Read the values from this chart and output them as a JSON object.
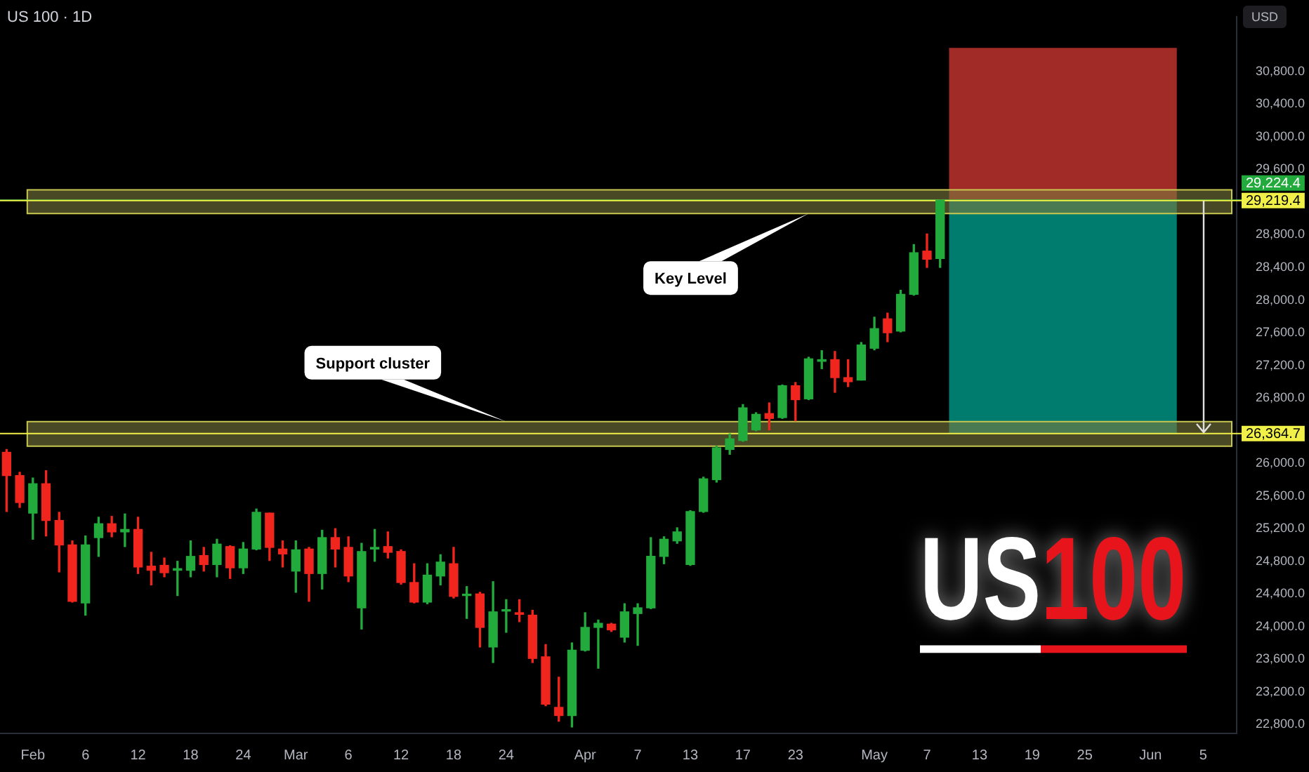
{
  "chart_data": {
    "type": "candlestick",
    "title": "US 100 · 1D",
    "ylabel": "USD",
    "subtitle": "US100",
    "categories": [
      null,
      null,
      "Feb",
      null,
      null,
      null,
      "6",
      null,
      null,
      null,
      "12",
      null,
      null,
      null,
      "18",
      null,
      null,
      null,
      "24",
      null,
      null,
      null,
      "Mar",
      null,
      null,
      null,
      "6",
      null,
      null,
      null,
      "12",
      null,
      null,
      null,
      "18",
      null,
      null,
      null,
      "24",
      null,
      null,
      null,
      null,
      null,
      "Apr",
      null,
      null,
      null,
      "7",
      null,
      null,
      null,
      "13",
      null,
      null,
      null,
      "17",
      null,
      null,
      null,
      "23",
      null,
      null,
      null,
      null,
      null,
      "May",
      null,
      null,
      null,
      "7",
      null,
      null,
      null,
      "13",
      null,
      null,
      null,
      "19",
      null,
      null,
      null,
      "25",
      null,
      null,
      null,
      null,
      "Jun",
      null,
      null,
      null,
      "5",
      null,
      null
    ],
    "ohlc": [
      [
        26135,
        26170,
        25410,
        25850
      ],
      [
        25850,
        25890,
        25460,
        25520
      ],
      [
        25390,
        25820,
        25070,
        25750
      ],
      [
        25750,
        25910,
        25110,
        25300
      ],
      [
        25300,
        25400,
        24670,
        25000
      ],
      [
        25000,
        25050,
        24300,
        24310
      ],
      [
        24290,
        25110,
        24140,
        25000
      ],
      [
        25090,
        25340,
        24860,
        25260
      ],
      [
        25260,
        25350,
        25100,
        25160
      ],
      [
        25160,
        25380,
        24980,
        25190
      ],
      [
        25190,
        25340,
        24650,
        24730
      ],
      [
        24740,
        24910,
        24510,
        24690
      ],
      [
        24750,
        24840,
        24610,
        24660
      ],
      [
        24690,
        24800,
        24380,
        24710
      ],
      [
        24690,
        25050,
        24610,
        24860
      ],
      [
        24870,
        24970,
        24680,
        24760
      ],
      [
        24760,
        25070,
        24610,
        25010
      ],
      [
        24980,
        24990,
        24590,
        24720
      ],
      [
        24720,
        25030,
        24650,
        24950
      ],
      [
        24950,
        25440,
        24940,
        25400
      ],
      [
        25390,
        25390,
        24810,
        24970
      ],
      [
        24950,
        25050,
        24730,
        24890
      ],
      [
        24680,
        25050,
        24420,
        24940
      ],
      [
        24950,
        24970,
        24310,
        24650
      ],
      [
        24650,
        25180,
        24460,
        25090
      ],
      [
        25090,
        25200,
        24730,
        24950
      ],
      [
        24970,
        25100,
        24550,
        24620
      ],
      [
        24230,
        25020,
        23970,
        24920
      ],
      [
        24950,
        25190,
        24800,
        24970
      ],
      [
        24980,
        25160,
        24840,
        24910
      ],
      [
        24920,
        24940,
        24520,
        24540
      ],
      [
        24540,
        24770,
        24290,
        24300
      ],
      [
        24300,
        24770,
        24280,
        24630
      ],
      [
        24620,
        24880,
        24510,
        24790
      ],
      [
        24770,
        24970,
        24350,
        24370
      ],
      [
        24380,
        24490,
        24100,
        24390
      ],
      [
        24400,
        24420,
        23750,
        23990
      ],
      [
        23750,
        24550,
        23560,
        24180
      ],
      [
        24190,
        24330,
        23930,
        24200
      ],
      [
        24170,
        24330,
        24060,
        24150
      ],
      [
        24140,
        24200,
        23560,
        23610
      ],
      [
        23630,
        23780,
        23030,
        23050
      ],
      [
        23010,
        23380,
        22840,
        22910
      ],
      [
        22910,
        23800,
        22770,
        23710
      ],
      [
        23710,
        24170,
        23700,
        23990
      ],
      [
        23990,
        24080,
        23490,
        24040
      ],
      [
        24030,
        24040,
        23940,
        23960
      ],
      [
        23870,
        24280,
        23810,
        24180
      ],
      [
        24160,
        24280,
        23770,
        24230
      ],
      [
        24230,
        25090,
        24220,
        24860
      ],
      [
        24860,
        25100,
        24770,
        25070
      ],
      [
        25050,
        25210,
        25020,
        25160
      ],
      [
        24760,
        25420,
        24750,
        25410
      ],
      [
        25410,
        25830,
        25400,
        25810
      ],
      [
        25800,
        26210,
        25770,
        26190
      ],
      [
        26170,
        26360,
        26110,
        26300
      ],
      [
        26280,
        26720,
        26270,
        26680
      ],
      [
        26410,
        26620,
        26400,
        26600
      ],
      [
        26610,
        26740,
        26410,
        26550
      ],
      [
        26560,
        26960,
        26550,
        26950
      ],
      [
        26950,
        26990,
        26520,
        26780
      ],
      [
        26790,
        27300,
        26780,
        27280
      ],
      [
        27250,
        27380,
        27160,
        27270
      ],
      [
        27270,
        27370,
        26870,
        27050
      ],
      [
        27050,
        27270,
        26940,
        27000
      ],
      [
        27020,
        27480,
        27020,
        27450
      ],
      [
        27410,
        27790,
        27390,
        27650
      ],
      [
        27770,
        27840,
        27490,
        27600
      ],
      [
        27620,
        28120,
        27610,
        28070
      ],
      [
        28070,
        28680,
        28060,
        28580
      ],
      [
        28600,
        28810,
        28400,
        28500
      ],
      [
        28510,
        29224.4,
        28400,
        29219.4
      ],
      null,
      null,
      null,
      null,
      null,
      null,
      null,
      null,
      null,
      null,
      null,
      null,
      null,
      null,
      null,
      null,
      null,
      null,
      null,
      null,
      null,
      null
    ],
    "ylim": [
      22700,
      31480
    ],
    "yticks": [
      {
        "value": 22800,
        "label": "22,800.0"
      },
      {
        "value": 23200,
        "label": "23,200.0"
      },
      {
        "value": 23600,
        "label": "23,600.0"
      },
      {
        "value": 24000,
        "label": "24,000.0"
      },
      {
        "value": 24400,
        "label": "24,400.0"
      },
      {
        "value": 24800,
        "label": "24,800.0"
      },
      {
        "value": 25200,
        "label": "25,200.0"
      },
      {
        "value": 25600,
        "label": "25,600.0"
      },
      {
        "value": 26000,
        "label": "26,000.0"
      },
      {
        "value": 26800,
        "label": "26,800.0"
      },
      {
        "value": 27200,
        "label": "27,200.0"
      },
      {
        "value": 27600,
        "label": "27,600.0"
      },
      {
        "value": 28000,
        "label": "28,000.0"
      },
      {
        "value": 28400,
        "label": "28,400.0"
      },
      {
        "value": 28800,
        "label": "28,800.0"
      },
      {
        "value": 29600,
        "label": "29,600.0"
      },
      {
        "value": 30000,
        "label": "30,000.0"
      },
      {
        "value": 30400,
        "label": "30,400.0"
      },
      {
        "value": 30800,
        "label": "30,800.0"
      }
    ],
    "ref_lines": [
      {
        "axis": "y",
        "value": 29224.4,
        "label": "29,224.4",
        "color": "#22ab3c"
      },
      {
        "axis": "y",
        "value": 29219.4,
        "label": "29,219.4",
        "color": "#f0f048"
      },
      {
        "axis": "y",
        "value": 26364.7,
        "label": "26,364.7",
        "color": "#f0f048"
      }
    ],
    "bands": [
      {
        "axis": "y",
        "from": 29224.4,
        "to": 31090,
        "color": "#b2302a"
      },
      {
        "axis": "y",
        "from": 26370,
        "to": 29224.4,
        "color": "#00897b"
      },
      {
        "axis": "y",
        "from": 29060,
        "to": 29350,
        "label": "Key Level",
        "color": "#7a7a3e"
      },
      {
        "axis": "y",
        "from": 26210,
        "to": 26510,
        "label": "Support cluster",
        "color": "#7a7a3e"
      }
    ]
  }
}
